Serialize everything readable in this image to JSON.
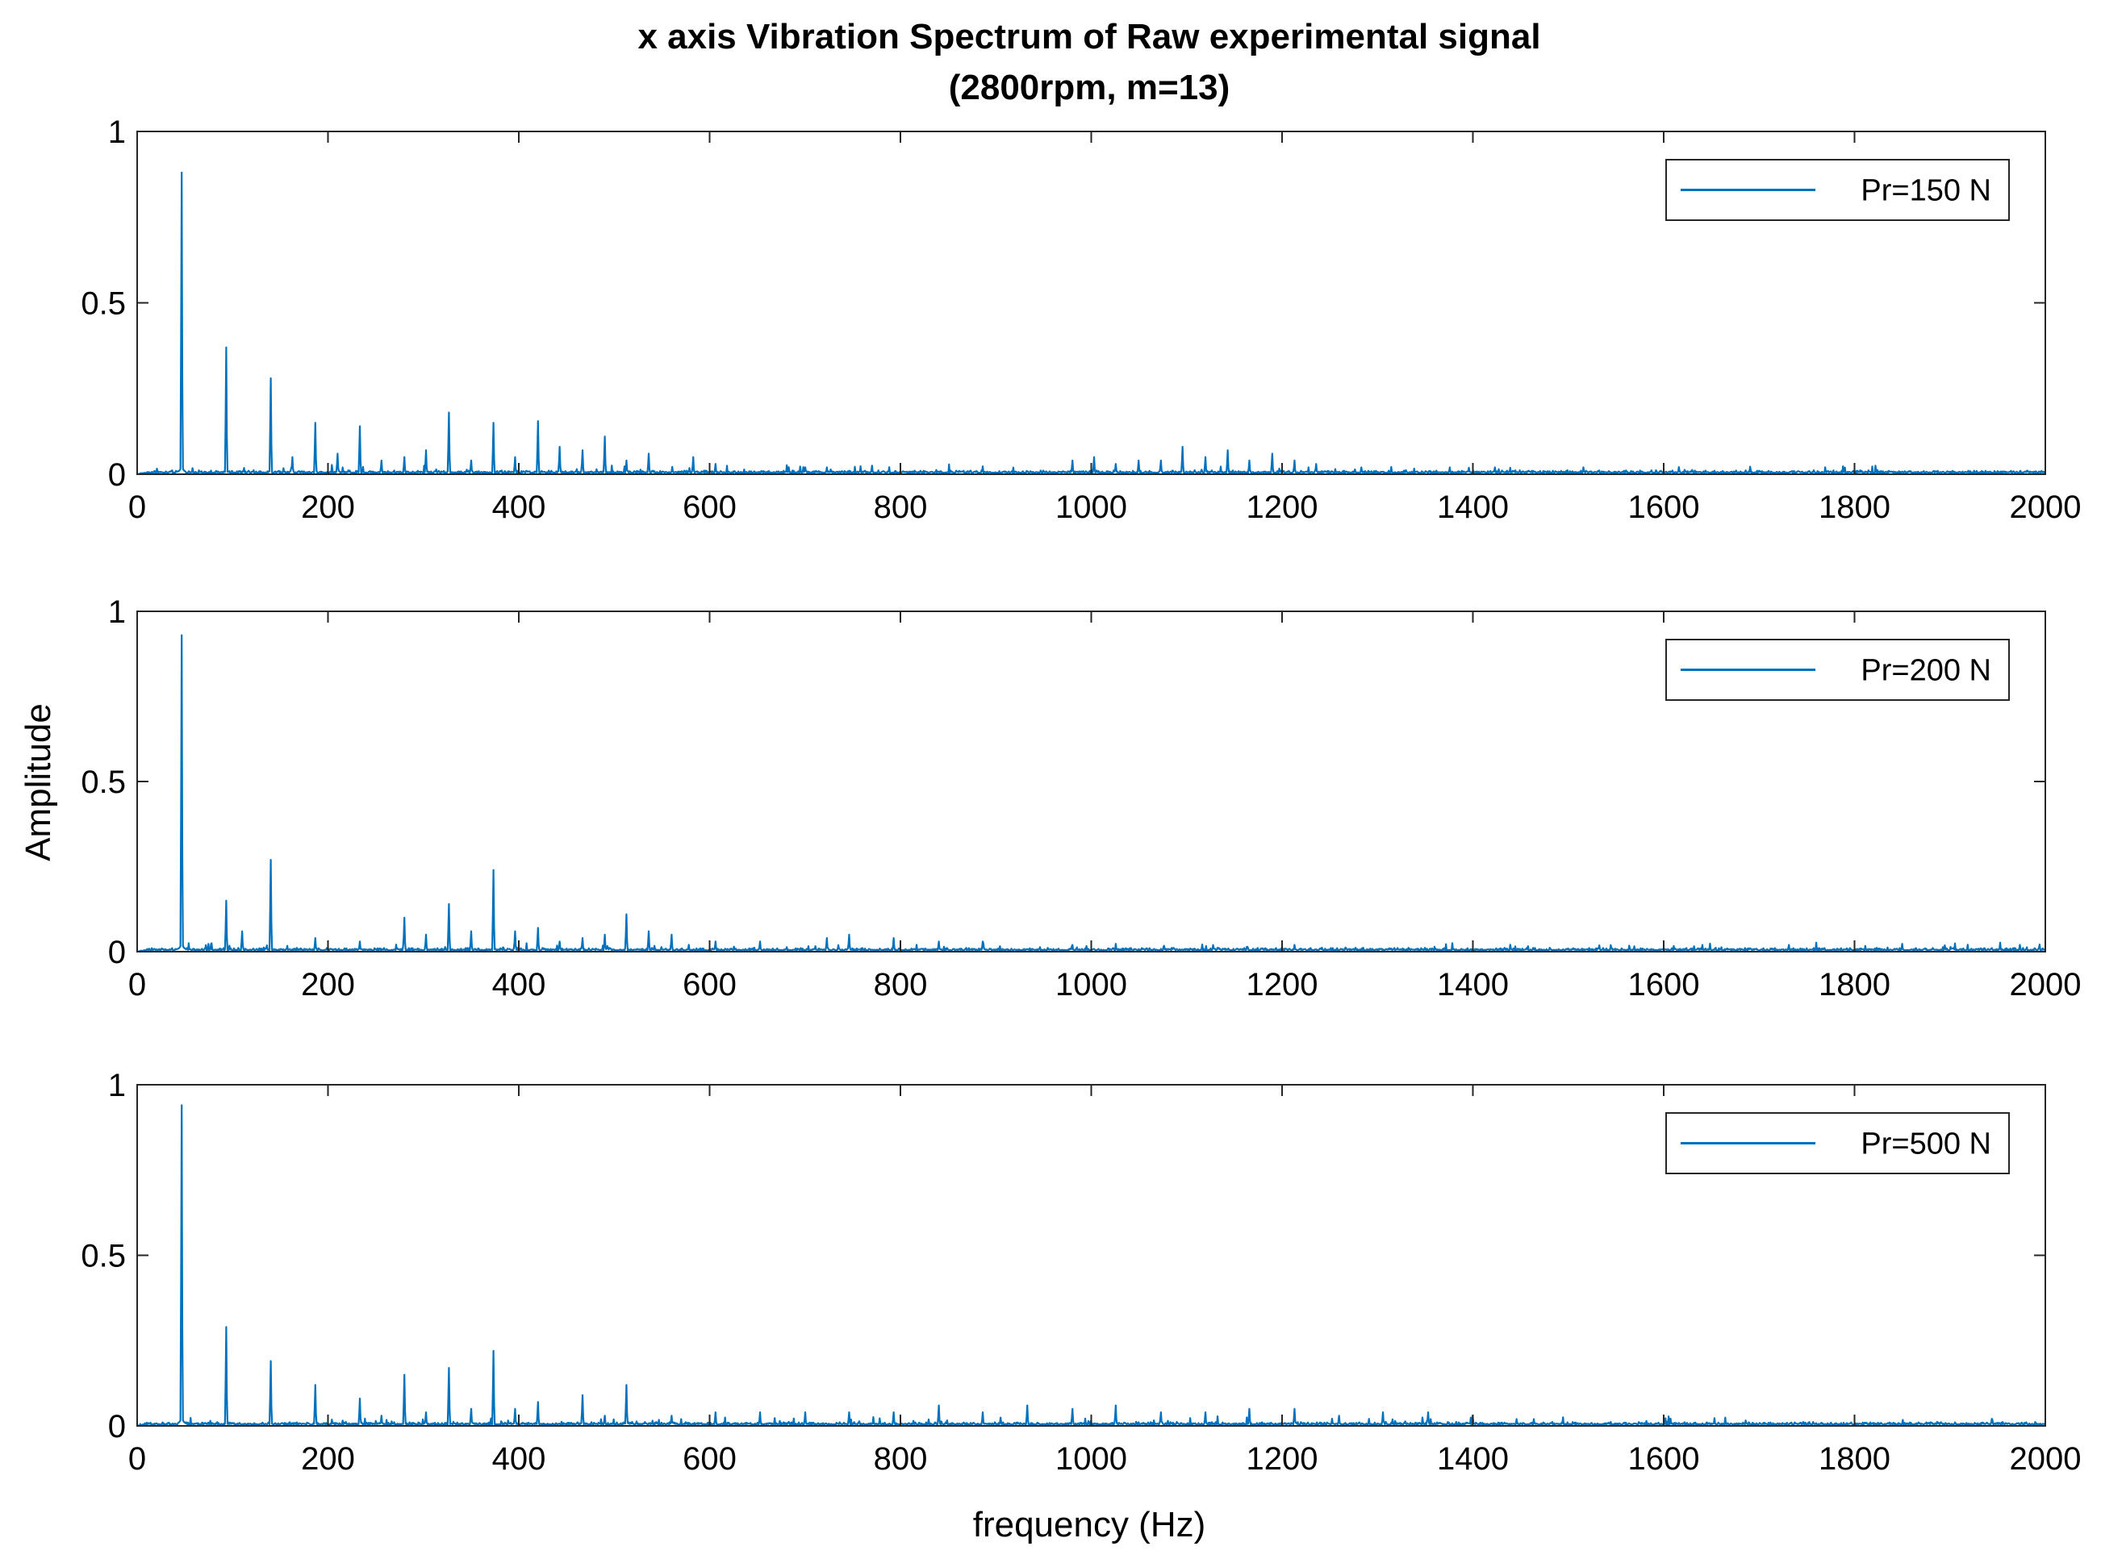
{
  "chart_data": {
    "type": "line",
    "title": [
      "x axis Vibration Spectrum of Raw experimental signal",
      "(2800rpm, m=13)"
    ],
    "xlabel": "frequency (Hz)",
    "ylabel": "Amplitude",
    "xlim": [
      0,
      2000
    ],
    "ylim": [
      0,
      1
    ],
    "xticks": [
      0,
      200,
      400,
      600,
      800,
      1000,
      1200,
      1400,
      1600,
      1800,
      2000
    ],
    "yticks": [
      0,
      0.5,
      1
    ],
    "ytick_labels": [
      "0",
      "0.5",
      "1"
    ],
    "series_color": "#0072BD",
    "legend_position": "top-right",
    "subplots": [
      {
        "legend": "Pr=150 N",
        "peaks": [
          [
            46.7,
            0.88
          ],
          [
            93.3,
            0.37
          ],
          [
            140,
            0.28
          ],
          [
            186.7,
            0.15
          ],
          [
            233.3,
            0.14
          ],
          [
            163,
            0.05
          ],
          [
            210,
            0.06
          ],
          [
            256,
            0.04
          ],
          [
            280,
            0.05
          ],
          [
            303,
            0.07
          ],
          [
            326.7,
            0.18
          ],
          [
            350,
            0.04
          ],
          [
            373.3,
            0.15
          ],
          [
            396,
            0.05
          ],
          [
            420,
            0.155
          ],
          [
            443,
            0.08
          ],
          [
            466.7,
            0.07
          ],
          [
            490,
            0.11
          ],
          [
            513,
            0.04
          ],
          [
            536,
            0.06
          ],
          [
            583,
            0.05
          ],
          [
            606,
            0.03
          ],
          [
            700,
            0.02
          ],
          [
            723,
            0.02
          ],
          [
            770,
            0.025
          ],
          [
            980,
            0.04
          ],
          [
            1003,
            0.05
          ],
          [
            1026,
            0.03
          ],
          [
            1050,
            0.04
          ],
          [
            1073,
            0.04
          ],
          [
            1096,
            0.08
          ],
          [
            1120,
            0.05
          ],
          [
            1143,
            0.07
          ],
          [
            1166,
            0.04
          ],
          [
            1190,
            0.06
          ],
          [
            1213,
            0.04
          ],
          [
            1236,
            0.03
          ],
          [
            1283,
            0.02
          ],
          [
            1376,
            0.02
          ],
          [
            1423,
            0.02
          ],
          [
            1516,
            0.02
          ]
        ]
      },
      {
        "legend": "Pr=200 N",
        "peaks": [
          [
            46.7,
            0.93
          ],
          [
            93.3,
            0.15
          ],
          [
            110,
            0.06
          ],
          [
            140,
            0.27
          ],
          [
            186.7,
            0.04
          ],
          [
            233.3,
            0.03
          ],
          [
            280,
            0.1
          ],
          [
            303,
            0.05
          ],
          [
            326.7,
            0.14
          ],
          [
            350,
            0.06
          ],
          [
            373.3,
            0.24
          ],
          [
            396,
            0.06
          ],
          [
            420,
            0.07
          ],
          [
            443,
            0.03
          ],
          [
            466.7,
            0.04
          ],
          [
            490,
            0.05
          ],
          [
            513,
            0.11
          ],
          [
            536,
            0.06
          ],
          [
            560,
            0.05
          ],
          [
            606,
            0.03
          ],
          [
            653,
            0.03
          ],
          [
            723,
            0.04
          ],
          [
            746,
            0.05
          ],
          [
            793,
            0.04
          ],
          [
            840,
            0.03
          ],
          [
            886,
            0.03
          ],
          [
            980,
            0.02
          ],
          [
            1213,
            0.02
          ]
        ]
      },
      {
        "legend": "Pr=500 N",
        "peaks": [
          [
            46.7,
            0.94
          ],
          [
            93.3,
            0.29
          ],
          [
            140,
            0.19
          ],
          [
            186.7,
            0.12
          ],
          [
            233.3,
            0.08
          ],
          [
            256,
            0.03
          ],
          [
            280,
            0.15
          ],
          [
            303,
            0.04
          ],
          [
            326.7,
            0.17
          ],
          [
            350,
            0.05
          ],
          [
            373.3,
            0.22
          ],
          [
            396,
            0.05
          ],
          [
            420,
            0.07
          ],
          [
            466.7,
            0.09
          ],
          [
            490,
            0.03
          ],
          [
            513,
            0.12
          ],
          [
            560,
            0.03
          ],
          [
            606,
            0.04
          ],
          [
            653,
            0.04
          ],
          [
            700,
            0.04
          ],
          [
            746,
            0.04
          ],
          [
            793,
            0.04
          ],
          [
            840,
            0.06
          ],
          [
            886,
            0.04
          ],
          [
            933,
            0.06
          ],
          [
            980,
            0.05
          ],
          [
            1026,
            0.06
          ],
          [
            1073,
            0.04
          ],
          [
            1120,
            0.04
          ],
          [
            1166,
            0.05
          ],
          [
            1213,
            0.05
          ],
          [
            1260,
            0.03
          ],
          [
            1306,
            0.04
          ],
          [
            1353,
            0.04
          ],
          [
            1400,
            0.03
          ],
          [
            1446,
            0.02
          ]
        ]
      }
    ]
  }
}
